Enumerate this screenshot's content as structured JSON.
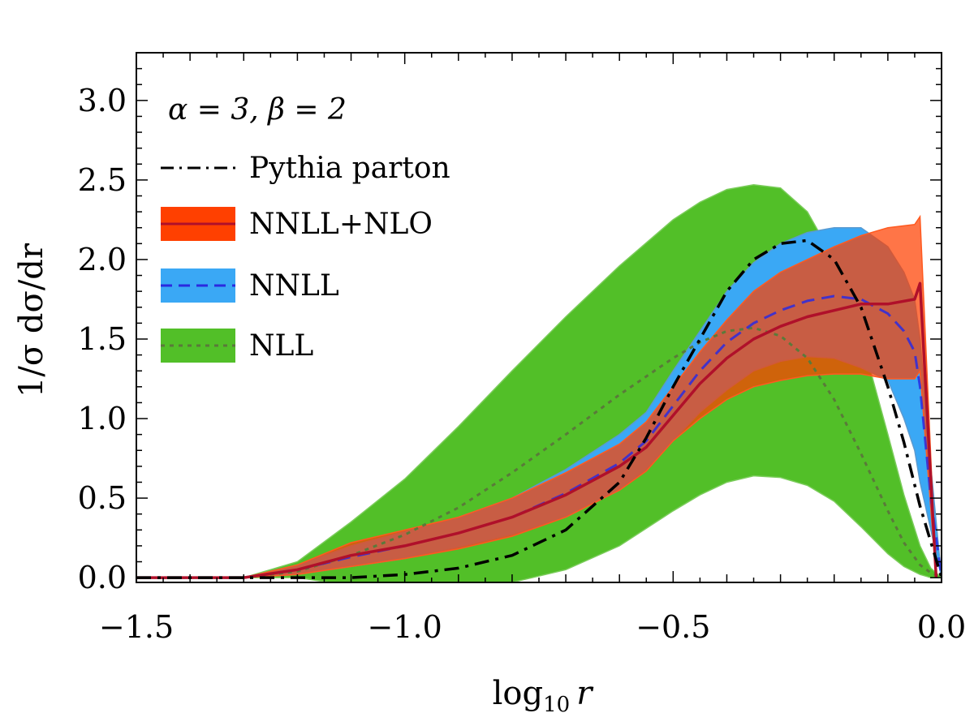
{
  "chart_data": {
    "type": "area",
    "annotation": "α = 3, β = 2",
    "xlabel_base": "log",
    "xlabel_sub": "10",
    "xlabel_var": "r",
    "ylabel": "1/σ dσ/dr",
    "xlim": [
      -1.5,
      0.0
    ],
    "ylim": [
      -0.03,
      3.3
    ],
    "xticks": [
      -1.5,
      -1.0,
      -0.5,
      0.0
    ],
    "xtick_labels": [
      "−1.5",
      "−1.0",
      "−0.5",
      "0.0"
    ],
    "yticks": [
      0.0,
      0.5,
      1.0,
      1.5,
      2.0,
      2.5,
      3.0
    ],
    "ytick_labels": [
      "0.0",
      "0.5",
      "1.0",
      "1.5",
      "2.0",
      "2.5",
      "3.0"
    ],
    "legend_position": "top-left",
    "colors": {
      "pythia": "#000000",
      "nnll_nlo_band": "#ff4000",
      "nnll_nlo_line": "#b0102a",
      "nnll_band": "#3aa8f5",
      "nnll_line": "#2a2ae0",
      "nll_band": "#52bf28",
      "nll_line": "#5a7a3a"
    },
    "series": [
      {
        "name": "Pythia parton",
        "style": "dash-dot",
        "x": [
          -1.5,
          -1.3,
          -1.25,
          -1.2,
          -1.1,
          -1.0,
          -0.9,
          -0.8,
          -0.7,
          -0.6,
          -0.55,
          -0.5,
          -0.45,
          -0.4,
          -0.35,
          -0.3,
          -0.25,
          -0.2,
          -0.15,
          -0.1,
          -0.07,
          -0.04,
          0.0
        ],
        "y": [
          0.0,
          0.0,
          0.0,
          0.0,
          0.0,
          0.02,
          0.06,
          0.14,
          0.3,
          0.6,
          0.88,
          1.2,
          1.5,
          1.8,
          2.0,
          2.1,
          2.12,
          2.0,
          1.7,
          1.2,
          0.85,
          0.45,
          0.0
        ]
      },
      {
        "name": "NNLL+NLO",
        "style": "solid",
        "x": [
          -1.5,
          -1.3,
          -1.2,
          -1.1,
          -1.0,
          -0.9,
          -0.8,
          -0.7,
          -0.6,
          -0.55,
          -0.5,
          -0.45,
          -0.4,
          -0.35,
          -0.3,
          -0.25,
          -0.2,
          -0.15,
          -0.1,
          -0.05,
          -0.04,
          -0.01
        ],
        "y": [
          0.0,
          0.0,
          0.05,
          0.14,
          0.2,
          0.28,
          0.38,
          0.52,
          0.7,
          0.82,
          1.02,
          1.22,
          1.38,
          1.5,
          1.58,
          1.64,
          1.68,
          1.72,
          1.72,
          1.75,
          1.85,
          0.0
        ],
        "lower": [
          0.0,
          0.0,
          0.02,
          0.07,
          0.12,
          0.18,
          0.26,
          0.38,
          0.55,
          0.67,
          0.86,
          1.0,
          1.12,
          1.2,
          1.24,
          1.27,
          1.28,
          1.28,
          1.25,
          1.25,
          1.3,
          0.0
        ],
        "upper": [
          0.0,
          0.0,
          0.08,
          0.22,
          0.3,
          0.38,
          0.5,
          0.66,
          0.84,
          0.98,
          1.2,
          1.42,
          1.62,
          1.8,
          1.92,
          2.0,
          2.08,
          2.15,
          2.2,
          2.22,
          2.27,
          0.0
        ]
      },
      {
        "name": "NNLL",
        "style": "dashed",
        "x": [
          -1.5,
          -1.3,
          -1.2,
          -1.1,
          -1.0,
          -0.9,
          -0.8,
          -0.7,
          -0.6,
          -0.55,
          -0.5,
          -0.45,
          -0.4,
          -0.35,
          -0.3,
          -0.25,
          -0.2,
          -0.15,
          -0.1,
          -0.07,
          -0.05,
          -0.04,
          -0.02,
          0.0
        ],
        "y": [
          0.0,
          0.0,
          0.05,
          0.13,
          0.2,
          0.28,
          0.38,
          0.53,
          0.72,
          0.86,
          1.08,
          1.3,
          1.48,
          1.6,
          1.68,
          1.74,
          1.77,
          1.75,
          1.66,
          1.55,
          1.42,
          1.2,
          0.5,
          0.0
        ],
        "lower": [
          0.0,
          0.0,
          0.02,
          0.07,
          0.12,
          0.19,
          0.27,
          0.38,
          0.55,
          0.68,
          0.86,
          1.04,
          1.18,
          1.3,
          1.36,
          1.39,
          1.38,
          1.32,
          1.24,
          1.0,
          0.8,
          0.6,
          0.3,
          0.0
        ],
        "upper": [
          0.0,
          0.0,
          0.08,
          0.2,
          0.29,
          0.38,
          0.5,
          0.68,
          0.9,
          1.04,
          1.3,
          1.55,
          1.8,
          1.98,
          2.1,
          2.17,
          2.2,
          2.2,
          2.08,
          1.92,
          1.75,
          1.5,
          0.7,
          0.0
        ]
      },
      {
        "name": "NLL",
        "style": "dotted",
        "x": [
          -1.5,
          -1.3,
          -1.2,
          -1.1,
          -1.0,
          -0.9,
          -0.8,
          -0.7,
          -0.6,
          -0.5,
          -0.45,
          -0.4,
          -0.35,
          -0.3,
          -0.25,
          -0.2,
          -0.15,
          -0.1,
          -0.07,
          -0.04,
          -0.02,
          0.0
        ],
        "y": [
          0.0,
          0.0,
          0.04,
          0.14,
          0.27,
          0.44,
          0.66,
          0.9,
          1.15,
          1.38,
          1.48,
          1.55,
          1.57,
          1.52,
          1.38,
          1.12,
          0.78,
          0.42,
          0.22,
          0.08,
          0.03,
          0.0
        ],
        "lower": [
          0.0,
          0.0,
          0.0,
          -0.05,
          -0.05,
          -0.05,
          -0.03,
          0.05,
          0.2,
          0.42,
          0.52,
          0.6,
          0.64,
          0.63,
          0.58,
          0.48,
          0.32,
          0.15,
          0.07,
          0.02,
          0.0,
          0.0
        ],
        "upper": [
          0.0,
          0.0,
          0.1,
          0.35,
          0.62,
          0.95,
          1.3,
          1.64,
          1.96,
          2.25,
          2.36,
          2.44,
          2.47,
          2.45,
          2.3,
          2.0,
          1.52,
          0.9,
          0.52,
          0.2,
          0.06,
          0.0
        ]
      }
    ]
  }
}
